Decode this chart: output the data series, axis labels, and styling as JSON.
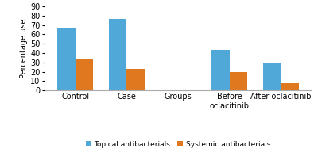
{
  "groups": [
    "Control",
    "Case",
    "Groups",
    "Before\noclacitinib",
    "After oclacitinib"
  ],
  "topical": [
    67,
    76,
    null,
    43,
    29
  ],
  "systemic": [
    33,
    23,
    null,
    20,
    8
  ],
  "bar_color_topical": "#4fa8d8",
  "bar_color_systemic": "#e07820",
  "ylabel": "Percentage use",
  "ylim": [
    0,
    90
  ],
  "yticks": [
    0,
    10,
    20,
    30,
    40,
    50,
    60,
    70,
    80,
    90
  ],
  "legend_topical": "Topical antibacterials",
  "legend_systemic": "Systemic antibacterials",
  "bar_width": 0.35,
  "background_color": "#ffffff"
}
